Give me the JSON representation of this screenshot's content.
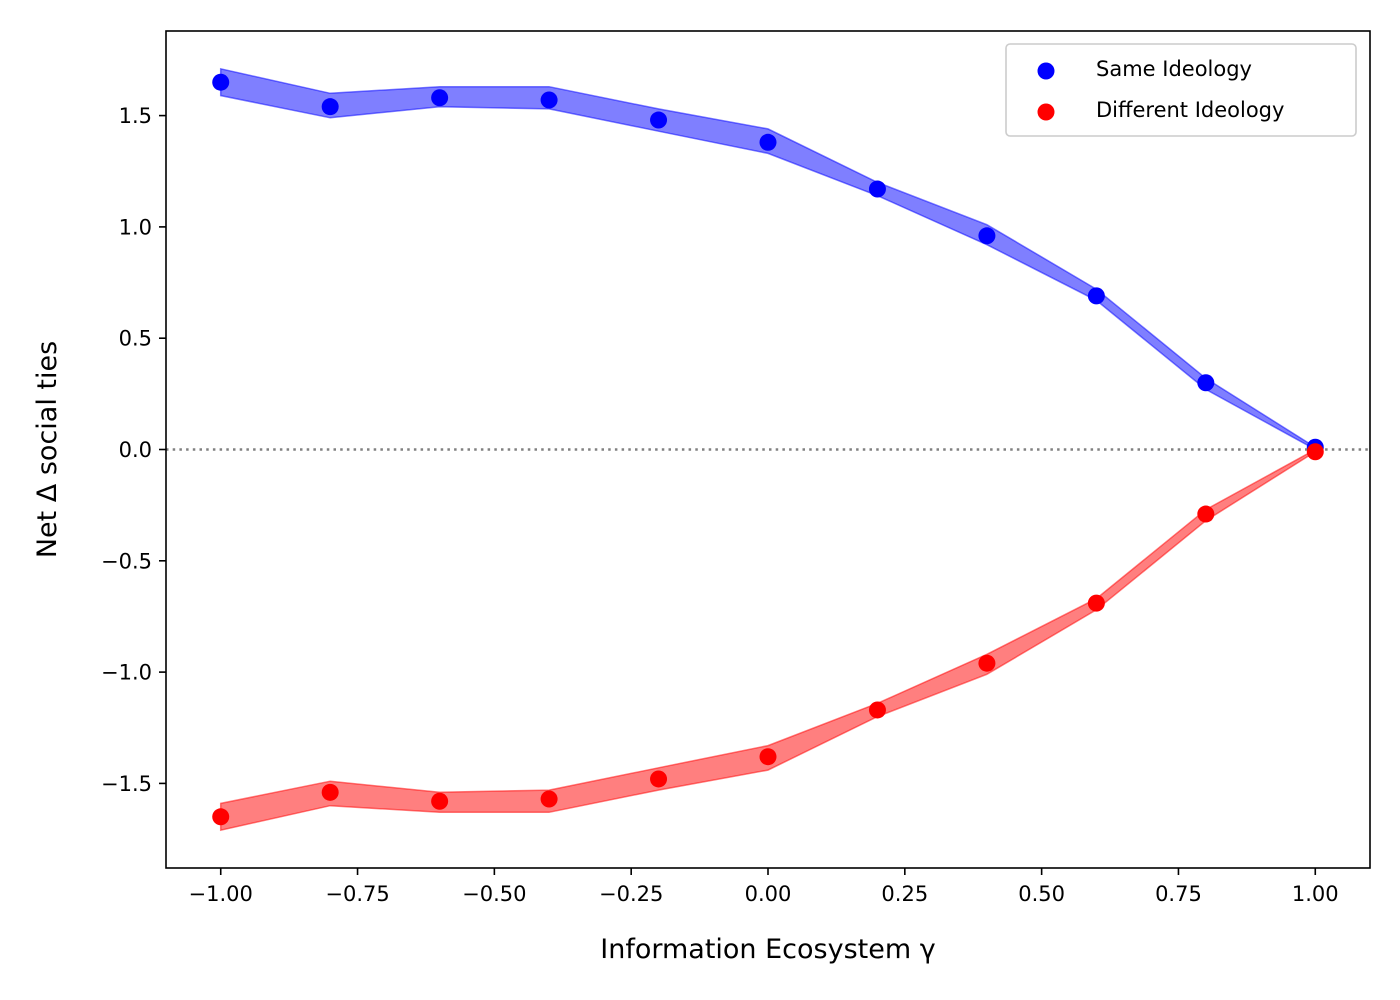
{
  "chart_data": {
    "type": "scatter",
    "xlabel": "Information Ecosystem γ",
    "ylabel": "Net Δ social ties",
    "xlim": [
      -1.1,
      1.1
    ],
    "ylim": [
      -1.88,
      1.88
    ],
    "x_ticks": [
      -1.0,
      -0.75,
      -0.5,
      -0.25,
      0.0,
      0.25,
      0.5,
      0.75,
      1.0
    ],
    "x_tick_labels": [
      "−1.00",
      "−0.75",
      "−0.50",
      "−0.25",
      "0.00",
      "0.25",
      "0.50",
      "0.75",
      "1.00"
    ],
    "y_ticks": [
      -1.5,
      -1.0,
      -0.5,
      0.0,
      0.5,
      1.0,
      1.5
    ],
    "y_tick_labels": [
      "−1.5",
      "−1.0",
      "−0.5",
      "0.0",
      "0.5",
      "1.0",
      "1.5"
    ],
    "reference_line": {
      "y": 0.0,
      "style": "dotted",
      "color": "#808080"
    },
    "legend_position": "top-right",
    "grid": false,
    "x": [
      -1.0,
      -0.8,
      -0.6,
      -0.4,
      -0.2,
      0.0,
      0.2,
      0.4,
      0.6,
      0.8,
      1.0
    ],
    "series": [
      {
        "name": "Same Ideology",
        "color": "#0000ff",
        "values": [
          1.65,
          1.54,
          1.58,
          1.57,
          1.48,
          1.38,
          1.17,
          0.96,
          0.69,
          0.3,
          0.01
        ],
        "band_lower": [
          1.59,
          1.49,
          1.54,
          1.53,
          1.43,
          1.33,
          1.14,
          0.92,
          0.67,
          0.27,
          0.0
        ],
        "band_upper": [
          1.71,
          1.6,
          1.63,
          1.63,
          1.53,
          1.44,
          1.2,
          1.01,
          0.72,
          0.32,
          0.01
        ]
      },
      {
        "name": "Different Ideology",
        "color": "#ff0000",
        "values": [
          -1.65,
          -1.54,
          -1.58,
          -1.57,
          -1.48,
          -1.38,
          -1.17,
          -0.96,
          -0.69,
          -0.29,
          -0.01
        ],
        "band_lower": [
          -1.71,
          -1.6,
          -1.63,
          -1.63,
          -1.53,
          -1.44,
          -1.2,
          -1.01,
          -0.72,
          -0.32,
          -0.01
        ],
        "band_upper": [
          -1.59,
          -1.49,
          -1.54,
          -1.53,
          -1.43,
          -1.33,
          -1.14,
          -0.92,
          -0.67,
          -0.27,
          0.0
        ]
      }
    ]
  }
}
